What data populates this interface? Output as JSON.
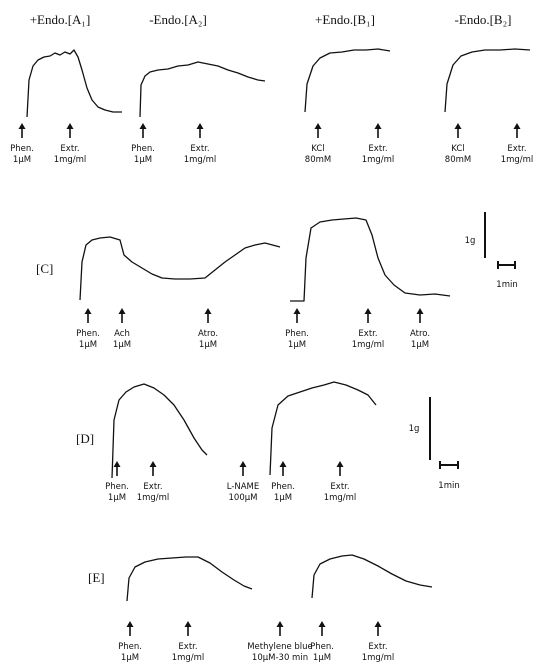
{
  "panels": [
    {
      "label": "+Endo.[A₁]",
      "arrows": [
        [
          "Phen.",
          "1μM"
        ],
        [
          "Extr.",
          "1mg/ml"
        ]
      ]
    },
    {
      "label": "-Endo.[A₂]",
      "arrows": [
        [
          "Phen.",
          "1μM"
        ],
        [
          "Extr.",
          "1mg/ml"
        ]
      ]
    },
    {
      "label": "+Endo.[B₁]",
      "arrows": [
        [
          "KCl",
          "80mM"
        ],
        [
          "Extr.",
          "1mg/ml"
        ]
      ]
    },
    {
      "label": "-Endo.[B₂]",
      "arrows": [
        [
          "KCl",
          "80mM"
        ],
        [
          "Extr.",
          "1mg/ml"
        ]
      ]
    },
    {
      "label": "[C]",
      "arrows": [
        [
          "Phen.",
          "1μM"
        ],
        [
          "Ach",
          "1μM"
        ],
        [
          "Atro.",
          "1μM"
        ],
        [
          "Phen.",
          "1μM"
        ],
        [
          "Extr.",
          "1mg/ml"
        ],
        [
          "Atro.",
          "1μM"
        ]
      ]
    },
    {
      "label": "[D]",
      "arrows": [
        [
          "Phen.",
          "1μM"
        ],
        [
          "Extr.",
          "1mg/ml"
        ],
        [
          "L-NAME",
          "100μM"
        ],
        [
          "Phen.",
          "1μM"
        ],
        [
          "Extr.",
          "1mg/ml"
        ]
      ]
    },
    {
      "label": "[E]",
      "arrows": [
        [
          "Phen.",
          "1μM"
        ],
        [
          "Extr.",
          "1mg/ml"
        ],
        [
          "Methylene blue",
          "10μM-30 min"
        ],
        [
          "Phen.",
          "1μM"
        ],
        [
          "Extr.",
          "1mg/ml"
        ]
      ]
    }
  ],
  "scale_bars": [
    {
      "vertical": "1g",
      "horizontal": "1min"
    },
    {
      "vertical": "1g",
      "horizontal": "1min"
    }
  ]
}
